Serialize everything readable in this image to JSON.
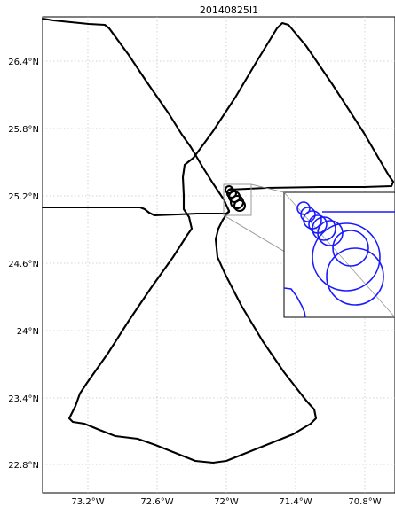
{
  "title": "20140825I1",
  "map": {
    "lat_ticks": [
      "26.4°N",
      "25.8°N",
      "25.2°N",
      "24.6°N",
      "24°N",
      "23.4°N",
      "22.8°N"
    ],
    "lon_ticks": [
      "73.2°W",
      "72.6°W",
      "72°W",
      "71.4°W",
      "70.8°W"
    ],
    "grid": true,
    "inset": true,
    "colors": {
      "track": "#000000",
      "inset_track": "#1a1aff",
      "grid": "#c8c8c8"
    }
  }
}
